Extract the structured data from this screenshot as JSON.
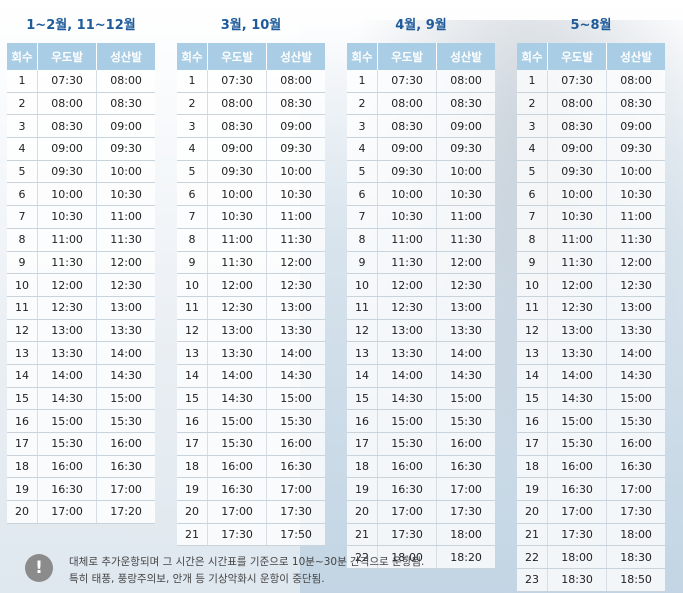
{
  "schedules": [
    {
      "title": "1~2월, 11~12월",
      "headers": [
        "회수",
        "우도발",
        "성산발"
      ],
      "rows": [
        [
          "1",
          "07:30",
          "08:00"
        ],
        [
          "2",
          "08:00",
          "08:30"
        ],
        [
          "3",
          "08:30",
          "09:00"
        ],
        [
          "4",
          "09:00",
          "09:30"
        ],
        [
          "5",
          "09:30",
          "10:00"
        ],
        [
          "6",
          "10:00",
          "10:30"
        ],
        [
          "7",
          "10:30",
          "11:00"
        ],
        [
          "8",
          "11:00",
          "11:30"
        ],
        [
          "9",
          "11:30",
          "12:00"
        ],
        [
          "10",
          "12:00",
          "12:30"
        ],
        [
          "11",
          "12:30",
          "13:00"
        ],
        [
          "12",
          "13:00",
          "13:30"
        ],
        [
          "13",
          "13:30",
          "14:00"
        ],
        [
          "14",
          "14:00",
          "14:30"
        ],
        [
          "15",
          "14:30",
          "15:00"
        ],
        [
          "16",
          "15:00",
          "15:30"
        ],
        [
          "17",
          "15:30",
          "16:00"
        ],
        [
          "18",
          "16:00",
          "16:30"
        ],
        [
          "19",
          "16:30",
          "17:00"
        ],
        [
          "20",
          "17:00",
          "17:20"
        ]
      ]
    },
    {
      "title": "3월, 10월",
      "headers": [
        "회수",
        "우도발",
        "성산발"
      ],
      "rows": [
        [
          "1",
          "07:30",
          "08:00"
        ],
        [
          "2",
          "08:00",
          "08:30"
        ],
        [
          "3",
          "08:30",
          "09:00"
        ],
        [
          "4",
          "09:00",
          "09:30"
        ],
        [
          "5",
          "09:30",
          "10:00"
        ],
        [
          "6",
          "10:00",
          "10:30"
        ],
        [
          "7",
          "10:30",
          "11:00"
        ],
        [
          "8",
          "11:00",
          "11:30"
        ],
        [
          "9",
          "11:30",
          "12:00"
        ],
        [
          "10",
          "12:00",
          "12:30"
        ],
        [
          "11",
          "12:30",
          "13:00"
        ],
        [
          "12",
          "13:00",
          "13:30"
        ],
        [
          "13",
          "13:30",
          "14:00"
        ],
        [
          "14",
          "14:00",
          "14:30"
        ],
        [
          "15",
          "14:30",
          "15:00"
        ],
        [
          "16",
          "15:00",
          "15:30"
        ],
        [
          "17",
          "15:30",
          "16:00"
        ],
        [
          "18",
          "16:00",
          "16:30"
        ],
        [
          "19",
          "16:30",
          "17:00"
        ],
        [
          "20",
          "17:00",
          "17:30"
        ],
        [
          "21",
          "17:30",
          "17:50"
        ]
      ]
    },
    {
      "title": "4월, 9월",
      "headers": [
        "회수",
        "우도발",
        "성산발"
      ],
      "rows": [
        [
          "1",
          "07:30",
          "08:00"
        ],
        [
          "2",
          "08:00",
          "08:30"
        ],
        [
          "3",
          "08:30",
          "09:00"
        ],
        [
          "4",
          "09:00",
          "09:30"
        ],
        [
          "5",
          "09:30",
          "10:00"
        ],
        [
          "6",
          "10:00",
          "10:30"
        ],
        [
          "7",
          "10:30",
          "11:00"
        ],
        [
          "8",
          "11:00",
          "11:30"
        ],
        [
          "9",
          "11:30",
          "12:00"
        ],
        [
          "10",
          "12:00",
          "12:30"
        ],
        [
          "11",
          "12:30",
          "13:00"
        ],
        [
          "12",
          "13:00",
          "13:30"
        ],
        [
          "13",
          "13:30",
          "14:00"
        ],
        [
          "14",
          "14:00",
          "14:30"
        ],
        [
          "15",
          "14:30",
          "15:00"
        ],
        [
          "16",
          "15:00",
          "15:30"
        ],
        [
          "17",
          "15:30",
          "16:00"
        ],
        [
          "18",
          "16:00",
          "16:30"
        ],
        [
          "19",
          "16:30",
          "17:00"
        ],
        [
          "20",
          "17:00",
          "17:30"
        ],
        [
          "21",
          "17:30",
          "18:00"
        ],
        [
          "22",
          "18:00",
          "18:20"
        ]
      ]
    },
    {
      "title": "5~8월",
      "headers": [
        "회수",
        "우도발",
        "성산발"
      ],
      "rows": [
        [
          "1",
          "07:30",
          "08:00"
        ],
        [
          "2",
          "08:00",
          "08:30"
        ],
        [
          "3",
          "08:30",
          "09:00"
        ],
        [
          "4",
          "09:00",
          "09:30"
        ],
        [
          "5",
          "09:30",
          "10:00"
        ],
        [
          "6",
          "10:00",
          "10:30"
        ],
        [
          "7",
          "10:30",
          "11:00"
        ],
        [
          "8",
          "11:00",
          "11:30"
        ],
        [
          "9",
          "11:30",
          "12:00"
        ],
        [
          "10",
          "12:00",
          "12:30"
        ],
        [
          "11",
          "12:30",
          "13:00"
        ],
        [
          "12",
          "13:00",
          "13:30"
        ],
        [
          "13",
          "13:30",
          "14:00"
        ],
        [
          "14",
          "14:00",
          "14:30"
        ],
        [
          "15",
          "14:30",
          "15:00"
        ],
        [
          "16",
          "15:00",
          "15:30"
        ],
        [
          "17",
          "15:30",
          "16:00"
        ],
        [
          "18",
          "16:00",
          "16:30"
        ],
        [
          "19",
          "16:30",
          "17:00"
        ],
        [
          "20",
          "17:00",
          "17:30"
        ],
        [
          "21",
          "17:30",
          "18:00"
        ],
        [
          "22",
          "18:00",
          "18:30"
        ],
        [
          "23",
          "18:30",
          "18:50"
        ]
      ]
    }
  ],
  "notice": {
    "icon": "exclamation-icon",
    "icon_glyph": "!",
    "line1": "대체로 추가운항되며 그 시간은 시간표를 기준으로 10분~30분 간격으로 운항됨.",
    "line2": "특히 태풍, 풍랑주의보, 안개 등 기상악화시 운항이 중단됨."
  },
  "colors": {
    "header_bg": "#a9cde4",
    "title_text": "#1f5b9a"
  }
}
